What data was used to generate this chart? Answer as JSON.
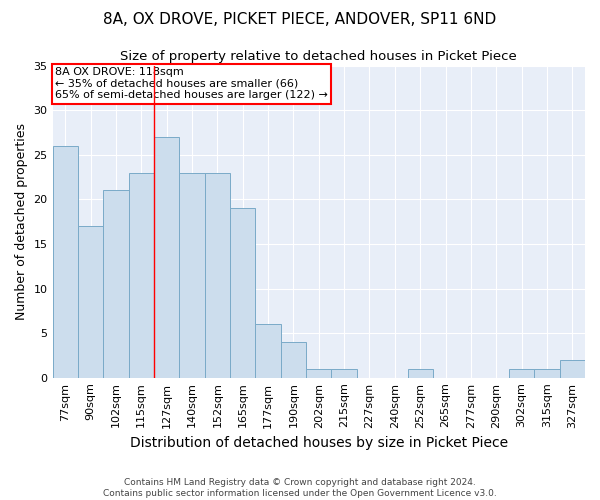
{
  "title": "8A, OX DROVE, PICKET PIECE, ANDOVER, SP11 6ND",
  "subtitle": "Size of property relative to detached houses in Picket Piece",
  "xlabel": "Distribution of detached houses by size in Picket Piece",
  "ylabel": "Number of detached properties",
  "categories": [
    "77sqm",
    "90sqm",
    "102sqm",
    "115sqm",
    "127sqm",
    "140sqm",
    "152sqm",
    "165sqm",
    "177sqm",
    "190sqm",
    "202sqm",
    "215sqm",
    "227sqm",
    "240sqm",
    "252sqm",
    "265sqm",
    "277sqm",
    "290sqm",
    "302sqm",
    "315sqm",
    "327sqm"
  ],
  "values": [
    26,
    17,
    21,
    23,
    27,
    23,
    23,
    19,
    6,
    4,
    1,
    1,
    0,
    0,
    1,
    0,
    0,
    0,
    1,
    1,
    2
  ],
  "bar_color": "#ccdded",
  "bar_edge_color": "#7aaac8",
  "red_line_x": 3.5,
  "annotation_line1": "8A OX DROVE: 118sqm",
  "annotation_line2": "← 35% of detached houses are smaller (66)",
  "annotation_line3": "65% of semi-detached houses are larger (122) →",
  "annotation_box_facecolor": "white",
  "annotation_box_edgecolor": "red",
  "footnote": "Contains HM Land Registry data © Crown copyright and database right 2024.\nContains public sector information licensed under the Open Government Licence v3.0.",
  "ylim": [
    0,
    35
  ],
  "yticks": [
    0,
    5,
    10,
    15,
    20,
    25,
    30,
    35
  ],
  "background_color": "#e8eef8",
  "grid_color": "#ffffff",
  "title_fontsize": 11,
  "subtitle_fontsize": 9.5,
  "xlabel_fontsize": 10,
  "ylabel_fontsize": 9,
  "tick_fontsize": 8,
  "annotation_fontsize": 8,
  "footnote_fontsize": 6.5
}
